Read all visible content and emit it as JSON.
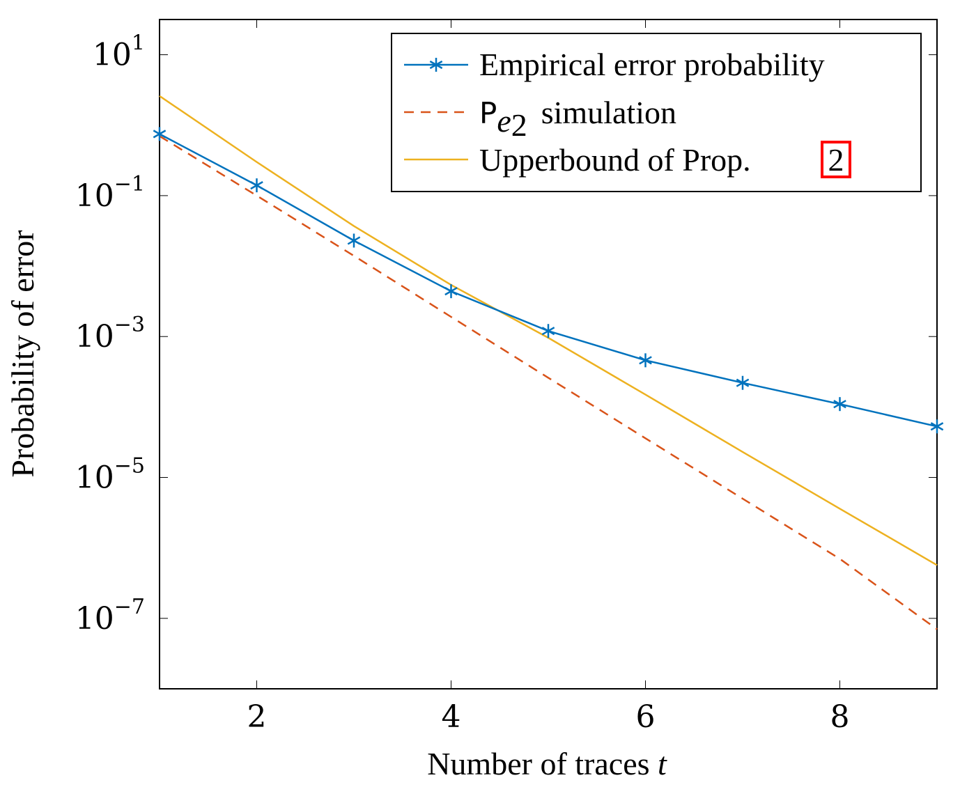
{
  "chart_data": {
    "type": "line",
    "xlabel": "Number of traces",
    "xlabel_var": "t",
    "ylabel": "Probability of error",
    "xlim": [
      1,
      9
    ],
    "ylim_log10": [
      -8,
      1.5
    ],
    "y_scale": "log",
    "grid": false,
    "legend_position": "top-right",
    "x_ticks": [
      2,
      4,
      6,
      8
    ],
    "y_ticks": [
      {
        "base": "10",
        "exp": "1",
        "log10": 1
      },
      {
        "base": "10",
        "exp": "−1",
        "log10": -1
      },
      {
        "base": "10",
        "exp": "−3",
        "log10": -3
      },
      {
        "base": "10",
        "exp": "−5",
        "log10": -5
      },
      {
        "base": "10",
        "exp": "−7",
        "log10": -7
      }
    ],
    "series": [
      {
        "name": "Empirical error probability",
        "color": "#0072bd",
        "style": "solid-star",
        "x": [
          1,
          2,
          3,
          4,
          5,
          6,
          7,
          8,
          9
        ],
        "y": [
          0.75,
          0.14,
          0.023,
          0.0044,
          0.0012,
          0.00046,
          0.00022,
          0.00011,
          5.3e-05
        ]
      },
      {
        "name": "simulation",
        "name_prefix": "P",
        "name_sub": "e",
        "name_subsub": "2",
        "color": "#d95319",
        "style": "dashed",
        "x": [
          1,
          2,
          3,
          4,
          5,
          6,
          7,
          8,
          9
        ],
        "y": [
          0.7,
          0.1,
          0.014,
          0.0019,
          0.00026,
          3.6e-05,
          5e-06,
          7e-07,
          7e-08
        ]
      },
      {
        "name": "Upperbound of Prop.",
        "name_ref": "2",
        "color": "#edb120",
        "style": "solid",
        "x": [
          1,
          2,
          3,
          4,
          5,
          6,
          7,
          8,
          9
        ],
        "y": [
          2.6,
          0.3,
          0.037,
          0.0054,
          0.00096,
          0.00015,
          2.3e-05,
          3.6e-06,
          5.7e-07
        ]
      }
    ]
  }
}
